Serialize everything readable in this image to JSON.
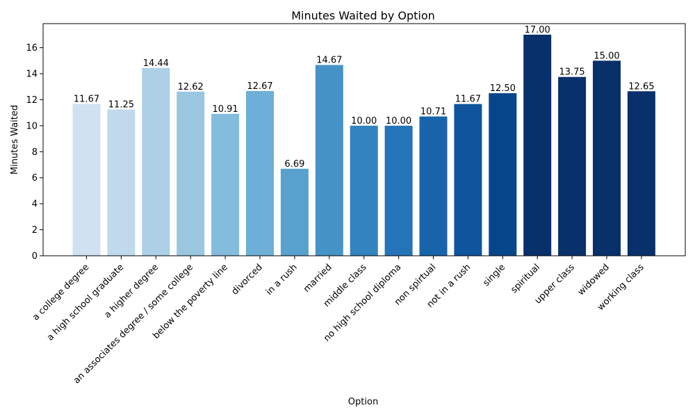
{
  "chart_data": {
    "type": "bar",
    "title": "Minutes Waited by Option",
    "xlabel": "Option",
    "ylabel": "Minutes Waited",
    "ylim": [
      0,
      17.85
    ],
    "yticks": [
      0,
      2,
      4,
      6,
      8,
      10,
      12,
      14,
      16
    ],
    "grid": false,
    "categories": [
      "a college degree",
      "a high school graduate",
      "a higher degree",
      "an associates degree / some college",
      "below the poverty line",
      "divorced",
      "in a rush",
      "married",
      "middle class",
      "no high school diploma",
      "non spirtual",
      "not in a rush",
      "single",
      "spiritual",
      "upper class",
      "widowed",
      "working class"
    ],
    "values": [
      11.67,
      11.25,
      14.44,
      12.62,
      10.91,
      12.67,
      6.69,
      14.67,
      10.0,
      10.0,
      10.71,
      11.67,
      12.5,
      17.0,
      13.75,
      15.0,
      12.65
    ],
    "value_labels": [
      "11.67",
      "11.25",
      "14.44",
      "12.62",
      "10.91",
      "12.67",
      "6.69",
      "14.67",
      "10.00",
      "10.00",
      "10.71",
      "11.67",
      "12.50",
      "17.00",
      "13.75",
      "15.00",
      "12.65"
    ],
    "colors": [
      "#d0e1f2",
      "#c1d9ed",
      "#add0e6",
      "#99c7e0",
      "#84bcdb",
      "#6dafd7",
      "#58a1cf",
      "#4593c7",
      "#3383be",
      "#2474b7",
      "#1764ab",
      "#0e559d",
      "#08468b",
      "#08306b",
      "#08306b",
      "#08306b",
      "#08306b"
    ]
  }
}
